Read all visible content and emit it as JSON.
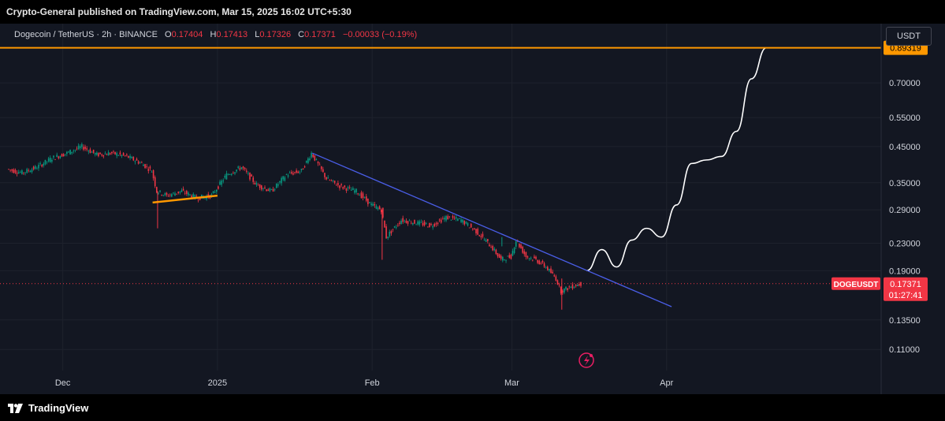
{
  "header": {
    "published": "Crypto-General published on TradingView.com, Mar 15, 2025 16:02 UTC+5:30"
  },
  "legend": {
    "symbol": "Dogecoin / TetherUS · 2h · BINANCE",
    "o_label": "O",
    "o_value": "0.17404",
    "h_label": "H",
    "h_value": "0.17413",
    "l_label": "L",
    "l_value": "0.17326",
    "c_label": "C",
    "c_value": "0.17371",
    "change": "−0.00033 (−0.19%)"
  },
  "currency": "USDT",
  "footer": {
    "brand": "TradingView"
  },
  "colors": {
    "background": "#131722",
    "grid": "#1e222d",
    "up": "#089981",
    "down": "#f23645",
    "resistance": "#ff9800",
    "trendline": "#4a5ee8",
    "projection": "#ffffff",
    "text": "#d1d4dc"
  },
  "chart_data": {
    "type": "line",
    "symbol": "DOGEUSDT",
    "title": "Dogecoin / TetherUS · 2h · BINANCE",
    "xlabel": "",
    "ylabel": "",
    "x_ticks": [
      "Dec",
      "2025",
      "Feb",
      "Mar",
      "Apr"
    ],
    "x_tick_dates": [
      "2024-12-01",
      "2025-01-01",
      "2025-02-01",
      "2025-03-01",
      "2025-04-01"
    ],
    "y_ticks": [
      0.7,
      0.55,
      0.45,
      0.35,
      0.29,
      0.23,
      0.19,
      0.135,
      0.11
    ],
    "y_tick_labels": [
      "0.70000",
      "0.55000",
      "0.45000",
      "0.35000",
      "0.29000",
      "0.23000",
      "0.19000",
      "0.13500",
      "0.11000"
    ],
    "ylim": [
      0.095,
      1.0
    ],
    "xlim": [
      "2024-11-20",
      "2025-05-14"
    ],
    "y_scale": "log",
    "grid": true,
    "series": [
      {
        "style": "price",
        "x": [
          "2024-11-20",
          "2024-11-23",
          "2024-11-26",
          "2024-11-29",
          "2024-12-02",
          "2024-12-05",
          "2024-12-08",
          "2024-12-11",
          "2024-12-14",
          "2024-12-17",
          "2024-12-19",
          "2024-12-20",
          "2024-12-22",
          "2024-12-25",
          "2024-12-28",
          "2024-12-31",
          "2025-01-03",
          "2025-01-06",
          "2025-01-09",
          "2025-01-12",
          "2025-01-15",
          "2025-01-18",
          "2025-01-20",
          "2025-01-23",
          "2025-01-26",
          "2025-01-29",
          "2025-02-01",
          "2025-02-03",
          "2025-02-04",
          "2025-02-07",
          "2025-02-10",
          "2025-02-13",
          "2025-02-16",
          "2025-02-19",
          "2025-02-22",
          "2025-02-25",
          "2025-02-27",
          "2025-03-01",
          "2025-03-02",
          "2025-03-04",
          "2025-03-06",
          "2025-03-08",
          "2025-03-10",
          "2025-03-11",
          "2025-03-13",
          "2025-03-15"
        ],
        "values": [
          0.385,
          0.375,
          0.39,
          0.415,
          0.43,
          0.45,
          0.425,
          0.43,
          0.42,
          0.4,
          0.38,
          0.33,
          0.32,
          0.33,
          0.315,
          0.32,
          0.37,
          0.39,
          0.345,
          0.33,
          0.37,
          0.38,
          0.43,
          0.36,
          0.34,
          0.33,
          0.3,
          0.29,
          0.24,
          0.27,
          0.265,
          0.26,
          0.275,
          0.27,
          0.25,
          0.225,
          0.205,
          0.21,
          0.235,
          0.21,
          0.205,
          0.195,
          0.18,
          0.165,
          0.17,
          0.17371
        ]
      },
      {
        "style": "projection",
        "x": [
          "2025-03-16",
          "2025-03-19",
          "2025-03-22",
          "2025-03-25",
          "2025-03-28",
          "2025-03-31",
          "2025-04-03",
          "2025-04-06",
          "2025-04-09",
          "2025-04-12",
          "2025-04-15",
          "2025-04-18",
          "2025-04-21"
        ],
        "values": [
          0.19,
          0.22,
          0.195,
          0.235,
          0.255,
          0.24,
          0.3,
          0.4,
          0.41,
          0.42,
          0.5,
          0.72,
          0.89319
        ]
      }
    ],
    "annotations": [
      {
        "type": "horizontal_line",
        "label": "0.89319",
        "value": 0.89319
      },
      {
        "type": "trendline",
        "x": [
          "2025-01-20",
          "2025-04-02"
        ],
        "values": [
          0.43,
          0.148
        ]
      },
      {
        "type": "support_line",
        "x": [
          "2024-12-19",
          "2025-01-01"
        ],
        "values": [
          0.305,
          0.32
        ]
      },
      {
        "type": "last_price",
        "symbol": "DOGEUSDT",
        "label": "0.17371",
        "countdown": "01:27:41",
        "value": 0.17371
      }
    ]
  }
}
